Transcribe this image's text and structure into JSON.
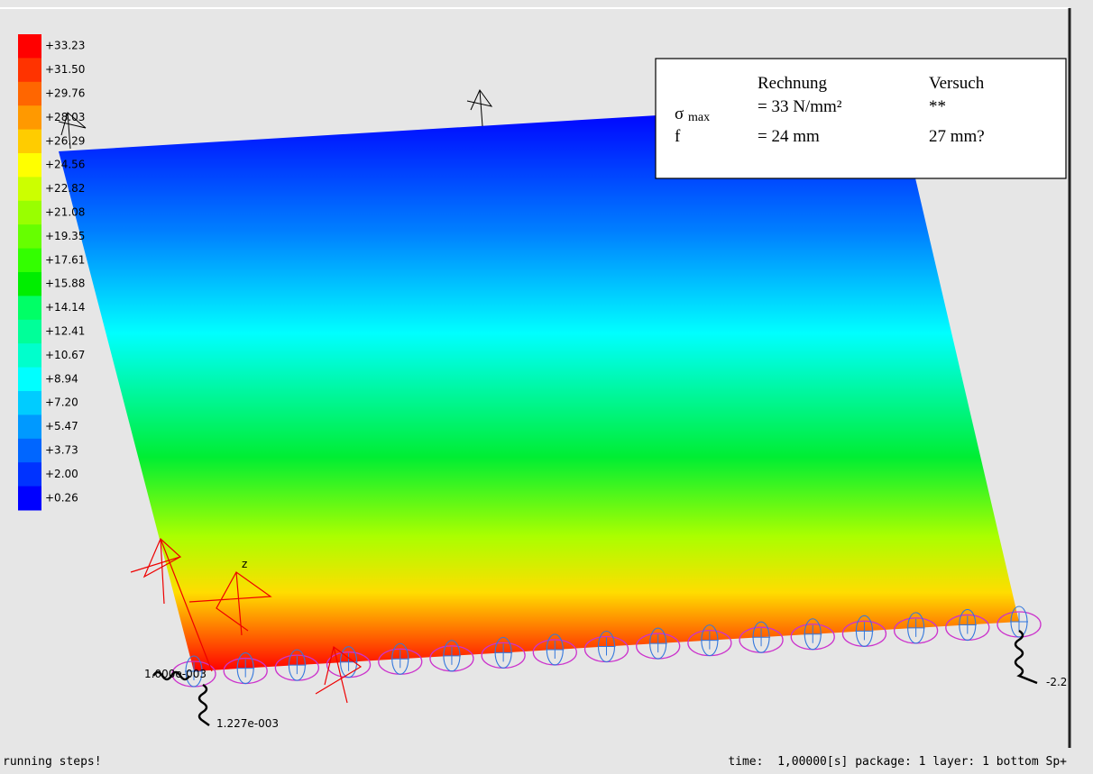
{
  "legend": {
    "labels": [
      "+33.23",
      "+31.50",
      "+29.76",
      "+28.03",
      "+26.29",
      "+24.56",
      "+22.82",
      "+21.08",
      "+19.35",
      "+17.61",
      "+15.88",
      "+14.14",
      "+12.41",
      "+10.67",
      "+8.94",
      "+7.20",
      "+5.47",
      "+3.73",
      "+2.00",
      "+0.26"
    ],
    "colors": [
      "#ff0000",
      "#ff3300",
      "#ff6600",
      "#ff9900",
      "#ffcc00",
      "#ffff00",
      "#ccff00",
      "#99ff00",
      "#66ff00",
      "#33ff00",
      "#00ee00",
      "#00ff66",
      "#00ff99",
      "#00ffcc",
      "#00ffff",
      "#00ccff",
      "#0099ff",
      "#0066ff",
      "#0033ff",
      "#0000ff"
    ]
  },
  "info_box": {
    "headers": [
      "Rechnung",
      "Versuch"
    ],
    "rows": [
      {
        "symbol": "σ",
        "subscript": "max",
        "calc": "= 33 N/mm²",
        "test": "**"
      },
      {
        "symbol": "f",
        "calc": "= 24 mm",
        "test": "27 mm?"
      }
    ]
  },
  "annotations": {
    "axis_label": "z",
    "node_label_left": "1.000e-003",
    "node_label_bottom": "1.227e-003",
    "node_label_right": "-2.2"
  },
  "status_bar": {
    "left": "running steps!",
    "right": "time:  1,00000[s] package: 1 layer: 1 bottom Sp+"
  }
}
